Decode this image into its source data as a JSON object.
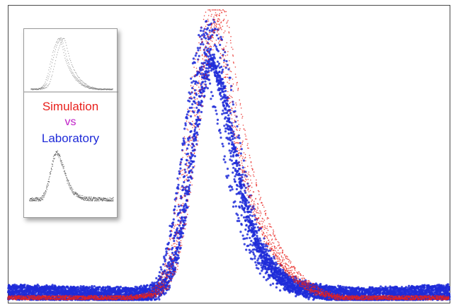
{
  "inset": {
    "line1": "Simulation",
    "line2": "vs",
    "line3": "Laboratory",
    "colors": {
      "simulation": "#e8201c",
      "vs": "#c020c8",
      "laboratory": "#1f2bd8"
    }
  },
  "chart_data": {
    "type": "scatter",
    "title": "",
    "xlabel": "",
    "ylabel": "",
    "grid": false,
    "xlim": [
      0,
      100
    ],
    "ylim": [
      0,
      100
    ],
    "series": [
      {
        "color": "#e8201c",
        "marker": "small-dot",
        "peak_x": 47.5,
        "peak_y": 99,
        "curve": [
          [
            0,
            1
          ],
          [
            28,
            1
          ],
          [
            33,
            2
          ],
          [
            35,
            5
          ],
          [
            37,
            12
          ],
          [
            39,
            28
          ],
          [
            41,
            50
          ],
          [
            43,
            72
          ],
          [
            45,
            88
          ],
          [
            46.5,
            96
          ],
          [
            47.5,
            99
          ],
          [
            48.5,
            95
          ],
          [
            50,
            80
          ],
          [
            52,
            60
          ],
          [
            54,
            45
          ],
          [
            56,
            34
          ],
          [
            58,
            26
          ],
          [
            60,
            19
          ],
          [
            63,
            12
          ],
          [
            66,
            7
          ],
          [
            70,
            3
          ],
          [
            75,
            1
          ],
          [
            100,
            1
          ]
        ]
      },
      {
        "color": "#1f2bd8",
        "marker": "dot",
        "peak_x": 45,
        "peak_y": 88,
        "curve": [
          [
            0,
            3
          ],
          [
            28,
            2
          ],
          [
            33,
            3
          ],
          [
            35,
            6
          ],
          [
            37,
            15
          ],
          [
            39,
            32
          ],
          [
            41,
            55
          ],
          [
            43,
            77
          ],
          [
            44.5,
            87
          ],
          [
            45.5,
            88
          ],
          [
            47,
            82
          ],
          [
            49,
            68
          ],
          [
            51,
            50
          ],
          [
            53,
            35
          ],
          [
            55,
            24
          ],
          [
            57,
            16
          ],
          [
            60,
            10
          ],
          [
            63,
            6
          ],
          [
            67,
            4
          ],
          [
            72,
            2.5
          ],
          [
            80,
            2
          ],
          [
            100,
            3
          ]
        ]
      }
    ]
  }
}
